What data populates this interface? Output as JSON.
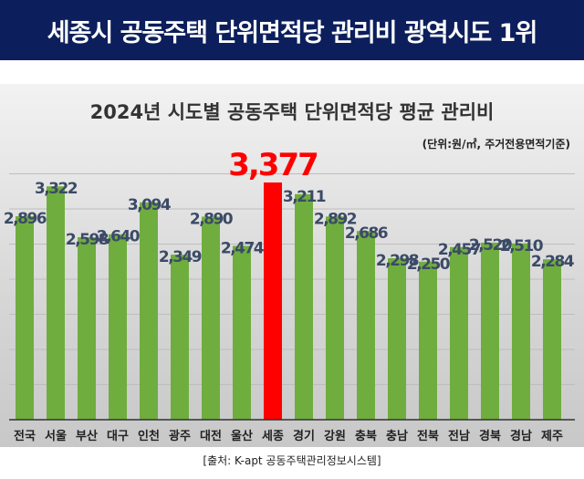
{
  "header": {
    "title": "세종시 공동주택 단위면적당 관리비 광역시도 1위"
  },
  "source": "[출처: K-apt 공동주택관리정보시스템]",
  "colors": {
    "header_bg": "#0c1f5c",
    "bar": "#6fad3f",
    "highlight": "#ff0000",
    "label": "#3b4a66"
  },
  "chart_data": {
    "type": "bar",
    "title": "2024년 시도별 공동주택 단위면적당 평균 관리비",
    "unit_note": "(단위:원/㎡, 주거전용면적기준)",
    "categories": [
      "전국",
      "서울",
      "부산",
      "대구",
      "인천",
      "광주",
      "대전",
      "울산",
      "세종",
      "경기",
      "강원",
      "충북",
      "충남",
      "전북",
      "전남",
      "경북",
      "경남",
      "제주"
    ],
    "values": [
      2896,
      3322,
      2598,
      2640,
      3094,
      2349,
      2890,
      2474,
      3377,
      3211,
      2892,
      2686,
      2298,
      2250,
      2457,
      2520,
      2510,
      2284
    ],
    "value_labels": [
      "2,896",
      "3,322",
      "2,598",
      "2,640",
      "3,094",
      "2,349",
      "2,890",
      "2,474",
      "3,377",
      "3,211",
      "2,892",
      "2,686",
      "2,298",
      "2,250",
      "2,457",
      "2,520",
      "2,510",
      "2,284"
    ],
    "highlight": "세종",
    "ylim": [
      0,
      3500
    ],
    "grid": true,
    "legend": "none"
  }
}
